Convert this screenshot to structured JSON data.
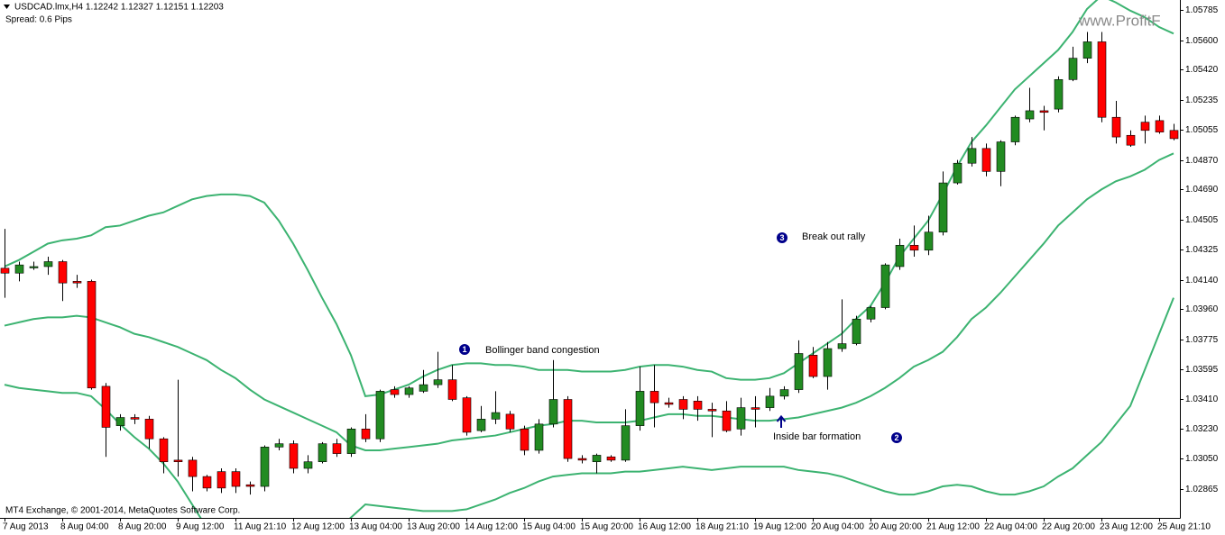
{
  "chart_data": {
    "type": "candlestick",
    "title": "USDCAD.lmx,H4 1.12242 1.12327 1.12151 1.12203",
    "subtitle": "Spread: 0.6 Pips",
    "copyright": "MT4 Exchange, © 2001-2014, MetaQuotes Software Corp.",
    "watermark": "www.ProfitF",
    "annotations": [
      {
        "number": "1",
        "text": "Bollinger band congestion"
      },
      {
        "number": "2",
        "text": "Inside bar formation"
      },
      {
        "number": "3",
        "text": "Break out rally"
      }
    ],
    "categories": [
      "7 Aug 2013",
      null,
      null,
      null,
      "8 Aug 04:00",
      null,
      null,
      null,
      "8 Aug 20:00",
      null,
      null,
      null,
      "9 Aug 12:00",
      null,
      null,
      null,
      "11 Aug 21:10",
      null,
      null,
      null,
      "12 Aug 12:00",
      null,
      null,
      null,
      "13 Aug 04:00",
      null,
      null,
      null,
      "13 Aug 20:00",
      null,
      null,
      null,
      "14 Aug 12:00",
      null,
      null,
      null,
      "15 Aug 04:00",
      null,
      null,
      null,
      "15 Aug 20:00",
      null,
      null,
      null,
      "16 Aug 12:00",
      null,
      null,
      null,
      "18 Aug 21:10",
      null,
      null,
      null,
      "19 Aug 12:00",
      null,
      null,
      null,
      "20 Aug 04:00",
      null,
      null,
      null,
      "20 Aug 20:00",
      null,
      null,
      null,
      "21 Aug 12:00",
      null,
      null,
      null,
      "22 Aug 04:00",
      null,
      null,
      null,
      "22 Aug 20:00",
      null,
      null,
      null,
      "23 Aug 12:00",
      null,
      null,
      null,
      "25 Aug 21:10",
      null
    ],
    "open": [
      1.0421,
      1.0418,
      1.0422,
      1.0422,
      1.0425,
      1.0413,
      1.0413,
      1.0349,
      1.0325,
      1.033,
      1.0329,
      1.0317,
      1.0304,
      1.0304,
      1.0294,
      1.0297,
      1.0297,
      1.0289,
      1.0288,
      1.0312,
      1.0314,
      1.0299,
      1.0303,
      1.0314,
      1.0308,
      1.0323,
      1.0317,
      1.0347,
      1.0344,
      1.0346,
      1.035,
      1.0353,
      1.0342,
      1.0322,
      1.0329,
      1.0332,
      1.0323,
      1.031,
      1.0326,
      1.0341,
      1.0305,
      1.0303,
      1.0306,
      1.0304,
      1.0325,
      1.0346,
      1.0339,
      1.0341,
      1.034,
      1.0335,
      1.0334,
      1.0323,
      1.0336,
      1.0336,
      1.0343,
      1.0347,
      1.0368,
      1.0355,
      1.0372,
      1.0375,
      1.039,
      1.0397,
      1.0422,
      1.0435,
      1.0432,
      1.0443,
      1.0473,
      1.0485,
      1.0494,
      1.048,
      1.0498,
      1.0512,
      1.0517,
      1.0518,
      1.0536,
      1.0549,
      1.0559,
      1.0513,
      1.0502,
      1.051,
      1.0511,
      1.0505
    ],
    "high": [
      1.0445,
      1.0425,
      1.0425,
      1.0428,
      1.0426,
      1.0417,
      1.0414,
      1.0351,
      1.0332,
      1.0332,
      1.0331,
      1.0318,
      1.0353,
      1.0306,
      1.0295,
      1.0299,
      1.0299,
      1.0291,
      1.0313,
      1.0317,
      1.0316,
      1.0307,
      1.0315,
      1.0317,
      1.0324,
      1.0332,
      1.0347,
      1.0349,
      1.0349,
      1.0359,
      1.037,
      1.0362,
      1.0343,
      1.0337,
      1.0346,
      1.0334,
      1.0325,
      1.0329,
      1.0365,
      1.0343,
      1.0307,
      1.0308,
      1.0307,
      1.0335,
      1.0361,
      1.0362,
      1.0342,
      1.0343,
      1.0343,
      1.0339,
      1.034,
      1.0342,
      1.0343,
      1.0348,
      1.0349,
      1.0377,
      1.0373,
      1.0376,
      1.0402,
      1.0392,
      1.0398,
      1.0424,
      1.0439,
      1.0447,
      1.0453,
      1.048,
      1.0487,
      1.0501,
      1.0497,
      1.0499,
      1.0514,
      1.0531,
      1.052,
      1.0538,
      1.0556,
      1.0565,
      1.0565,
      1.0523,
      1.0505,
      1.0514,
      1.0514,
      1.0509
    ],
    "low": [
      1.0403,
      1.0413,
      1.042,
      1.0417,
      1.0401,
      1.0409,
      1.0347,
      1.0306,
      1.0322,
      1.0326,
      1.0311,
      1.0296,
      1.0294,
      1.0285,
      1.0285,
      1.0284,
      1.0284,
      1.0283,
      1.0285,
      1.031,
      1.0296,
      1.0296,
      1.0302,
      1.0306,
      1.0306,
      1.0315,
      1.0315,
      1.0342,
      1.0342,
      1.0345,
      1.0348,
      1.034,
      1.0319,
      1.0321,
      1.0326,
      1.0321,
      1.0307,
      1.0308,
      1.0324,
      1.0303,
      1.0302,
      1.0296,
      1.0303,
      1.0303,
      1.0322,
      1.0324,
      1.0336,
      1.0329,
      1.0328,
      1.0318,
      1.0321,
      1.0319,
      1.0324,
      1.0334,
      1.0341,
      1.0345,
      1.0354,
      1.0347,
      1.037,
      1.0374,
      1.0388,
      1.0396,
      1.042,
      1.0428,
      1.0429,
      1.0441,
      1.0472,
      1.0483,
      1.0477,
      1.0471,
      1.0496,
      1.051,
      1.0505,
      1.0516,
      1.0535,
      1.0546,
      1.051,
      1.0497,
      1.0495,
      1.0497,
      1.0503,
      1.0499
    ],
    "close": [
      1.0418,
      1.0423,
      1.0422,
      1.0425,
      1.0412,
      1.0412,
      1.0348,
      1.0324,
      1.033,
      1.0329,
      1.0317,
      1.0303,
      1.0303,
      1.0294,
      1.0287,
      1.0287,
      1.0288,
      1.0288,
      1.0312,
      1.0314,
      1.0299,
      1.0303,
      1.0314,
      1.0308,
      1.0323,
      1.0317,
      1.0346,
      1.0344,
      1.0348,
      1.035,
      1.0353,
      1.0341,
      1.0321,
      1.0329,
      1.0333,
      1.0323,
      1.031,
      1.0326,
      1.0341,
      1.0305,
      1.0304,
      1.0307,
      1.0304,
      1.0325,
      1.0346,
      1.0339,
      1.0338,
      1.0335,
      1.0335,
      1.0334,
      1.0322,
      1.0336,
      1.0335,
      1.0343,
      1.0347,
      1.0369,
      1.0355,
      1.0372,
      1.0375,
      1.039,
      1.0397,
      1.0423,
      1.0435,
      1.0432,
      1.0443,
      1.0473,
      1.0485,
      1.0494,
      1.048,
      1.0498,
      1.0513,
      1.0517,
      1.0516,
      1.0536,
      1.0549,
      1.0559,
      1.0513,
      1.0501,
      1.0496,
      1.0505,
      1.0504,
      1.05
    ],
    "up_color": "#228b22",
    "down_color": "#ff0000",
    "wick_color": "#000000",
    "bands": [
      {
        "color": "#3cb371",
        "values": [
          1.0422,
          1.0426,
          1.0431,
          1.0436,
          1.0438,
          1.0439,
          1.0441,
          1.0446,
          1.0447,
          1.045,
          1.0453,
          1.0455,
          1.0459,
          1.0463,
          1.0465,
          1.0466,
          1.0466,
          1.0465,
          1.0461,
          1.045,
          1.0436,
          1.042,
          1.0403,
          1.0387,
          1.0368,
          1.0343,
          1.0344,
          1.0347,
          1.035,
          1.0355,
          1.0359,
          1.0362,
          1.0363,
          1.0363,
          1.0362,
          1.0362,
          1.0361,
          1.0359,
          1.0359,
          1.0359,
          1.0358,
          1.0358,
          1.0358,
          1.0359,
          1.0361,
          1.0362,
          1.0362,
          1.0361,
          1.0359,
          1.0358,
          1.0354,
          1.0353,
          1.0353,
          1.0354,
          1.0357,
          1.0363,
          1.0369,
          1.0375,
          1.0381,
          1.039,
          1.0398,
          1.0412,
          1.0428,
          1.0439,
          1.045,
          1.0466,
          1.0483,
          1.0498,
          1.0508,
          1.0519,
          1.053,
          1.0538,
          1.0546,
          1.0554,
          1.0565,
          1.0579,
          1.0587,
          1.0583,
          1.0578,
          1.0574,
          1.0568,
          1.0564
        ]
      },
      {
        "color": "#3cb371",
        "values": [
          1.0386,
          1.0388,
          1.039,
          1.0391,
          1.0391,
          1.0392,
          1.0391,
          1.0388,
          1.0385,
          1.0381,
          1.0379,
          1.0376,
          1.0373,
          1.0369,
          1.0365,
          1.0359,
          1.0354,
          1.0347,
          1.0341,
          1.0337,
          1.0333,
          1.0329,
          1.0325,
          1.0321,
          1.0313,
          1.031,
          1.031,
          1.0311,
          1.0312,
          1.0313,
          1.0314,
          1.0316,
          1.0317,
          1.0318,
          1.0319,
          1.0321,
          1.0323,
          1.0325,
          1.0326,
          1.0328,
          1.0328,
          1.0327,
          1.0327,
          1.0327,
          1.0328,
          1.033,
          1.0332,
          1.0332,
          1.0331,
          1.0331,
          1.033,
          1.0329,
          1.0328,
          1.0328,
          1.0329,
          1.033,
          1.0332,
          1.0334,
          1.0336,
          1.0339,
          1.0343,
          1.0348,
          1.0354,
          1.0361,
          1.0365,
          1.037,
          1.0379,
          1.039,
          1.0397,
          1.0406,
          1.0416,
          1.0426,
          1.0436,
          1.0447,
          1.0455,
          1.0463,
          1.0469,
          1.0474,
          1.0477,
          1.0481,
          1.0487,
          1.0491
        ]
      },
      {
        "color": "#3cb371",
        "values": [
          1.035,
          1.0348,
          1.0347,
          1.0346,
          1.0345,
          1.0345,
          1.0343,
          1.0335,
          1.0326,
          1.0318,
          1.0311,
          1.0302,
          1.0291,
          1.0277,
          1.0263,
          1.0255,
          1.025,
          1.0247,
          1.0244,
          1.0247,
          1.025,
          1.0252,
          1.0256,
          1.0261,
          1.0269,
          1.0277,
          1.0276,
          1.0275,
          1.0274,
          1.0273,
          1.0273,
          1.0273,
          1.0274,
          1.0277,
          1.028,
          1.0284,
          1.0287,
          1.0291,
          1.0294,
          1.0295,
          1.0296,
          1.0296,
          1.0296,
          1.0297,
          1.0297,
          1.0298,
          1.0299,
          1.03,
          1.0299,
          1.0298,
          1.0299,
          1.03,
          1.03,
          1.03,
          1.03,
          1.0298,
          1.0297,
          1.0296,
          1.0294,
          1.0291,
          1.0288,
          1.0285,
          1.0283,
          1.0283,
          1.0285,
          1.0288,
          1.0289,
          1.0288,
          1.0285,
          1.0283,
          1.0283,
          1.0285,
          1.0288,
          1.0294,
          1.0299,
          1.0307,
          1.0315,
          1.0326,
          1.0337,
          1.0359,
          1.0381,
          1.0403
        ]
      }
    ],
    "ylim": [
      1.02688,
      1.05845
    ],
    "yticks": [
      1.05785,
      {
        "value": 1.056,
        "label": "1.05600"
      },
      {
        "value": 1.0542,
        "label": "1.05420"
      },
      1.05235,
      1.05055,
      {
        "value": 1.0487,
        "label": "1.04870"
      },
      {
        "value": 1.0469,
        "label": "1.04690"
      },
      1.04505,
      1.04325,
      {
        "value": 1.0414,
        "label": "1.04140"
      },
      {
        "value": 1.0396,
        "label": "1.03960"
      },
      1.03775,
      1.03595,
      {
        "value": 1.0341,
        "label": "1.03410"
      },
      {
        "value": 1.0323,
        "label": "1.03230"
      },
      {
        "value": 1.0305,
        "label": "1.03050"
      },
      1.02865
    ],
    "grid": false
  }
}
